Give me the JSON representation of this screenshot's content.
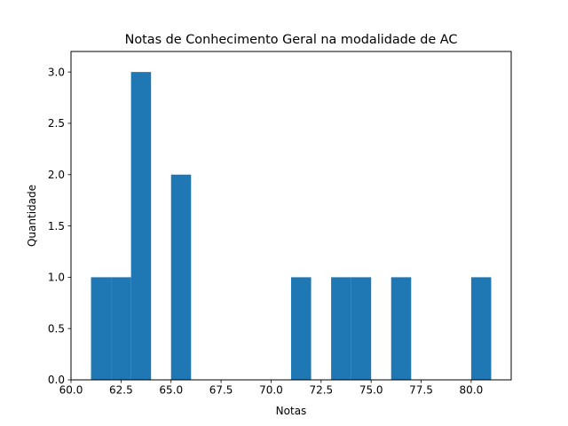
{
  "chart_data": {
    "type": "bar",
    "title": "Notas de Conhecimento Geral na modalidade de AC",
    "xlabel": "Notas",
    "ylabel": "Quantidade",
    "xlim": [
      60,
      82
    ],
    "ylim": [
      0,
      3.2
    ],
    "bar_color": "#1f77b4",
    "bins": [
      {
        "start": 61.0,
        "end": 62.0,
        "count": 1
      },
      {
        "start": 62.0,
        "end": 63.0,
        "count": 1
      },
      {
        "start": 63.0,
        "end": 64.0,
        "count": 3
      },
      {
        "start": 65.0,
        "end": 66.0,
        "count": 2
      },
      {
        "start": 71.0,
        "end": 72.0,
        "count": 1
      },
      {
        "start": 73.0,
        "end": 74.0,
        "count": 1
      },
      {
        "start": 74.0,
        "end": 75.0,
        "count": 1
      },
      {
        "start": 76.0,
        "end": 77.0,
        "count": 1
      },
      {
        "start": 80.0,
        "end": 81.0,
        "count": 1
      }
    ],
    "x_ticks": [
      60.0,
      62.5,
      65.0,
      67.5,
      70.0,
      72.5,
      75.0,
      77.5,
      80.0
    ],
    "x_tick_labels": [
      "60.0",
      "62.5",
      "65.0",
      "67.5",
      "70.0",
      "72.5",
      "75.0",
      "77.5",
      "80.0"
    ],
    "y_ticks": [
      0,
      0.5,
      1.0,
      1.5,
      2.0,
      2.5,
      3.0
    ],
    "y_tick_labels": [
      "0.0",
      "0.5",
      "1.0",
      "1.5",
      "2.0",
      "2.5",
      "3.0"
    ],
    "grid": false,
    "legend": "none"
  }
}
